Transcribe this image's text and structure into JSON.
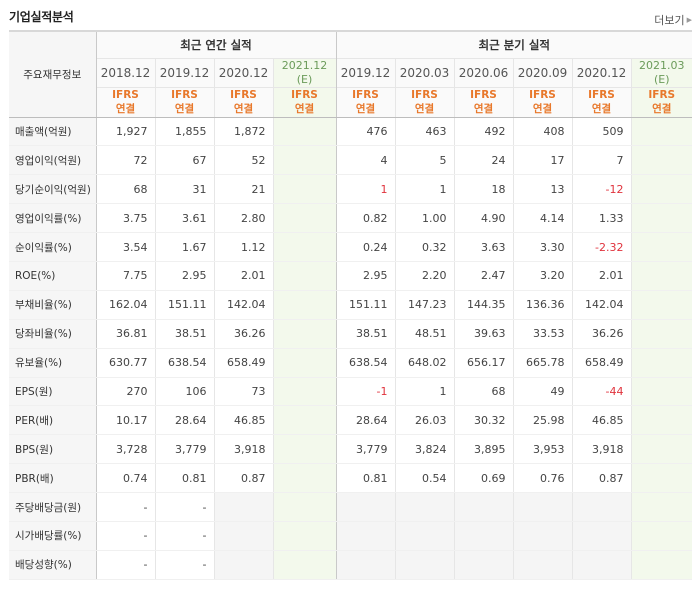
{
  "header": {
    "title": "기업실적분석",
    "more_label": "더보기"
  },
  "table": {
    "row_header_label": "주요재무정보",
    "annual_group_label": "최근 연간 실적",
    "quarter_group_label": "최근 분기 실적",
    "annual_periods": [
      "2018.12",
      "2019.12",
      "2020.12"
    ],
    "annual_estimate_period": "2021.12",
    "quarter_periods": [
      "2019.12",
      "2020.03",
      "2020.06",
      "2020.09",
      "2020.12"
    ],
    "quarter_estimate_period": "2021.03",
    "estimate_mark": "(E)",
    "ifrs_label": "IFRS",
    "consolidated_label": "연결",
    "rows": [
      {
        "label": "매출액(억원)",
        "annual": [
          "1,927",
          "1,855",
          "1,872"
        ],
        "quarter": [
          "476",
          "463",
          "492",
          "408",
          "509"
        ],
        "neg_q": [
          false,
          false,
          false,
          false,
          false
        ],
        "neg_a": [
          false,
          false,
          false
        ]
      },
      {
        "label": "영업이익(억원)",
        "annual": [
          "72",
          "67",
          "52"
        ],
        "quarter": [
          "4",
          "5",
          "24",
          "17",
          "7"
        ],
        "neg_q": [
          false,
          false,
          false,
          false,
          false
        ],
        "neg_a": [
          false,
          false,
          false
        ]
      },
      {
        "label": "당기순이익(억원)",
        "annual": [
          "68",
          "31",
          "21"
        ],
        "quarter": [
          "1",
          "1",
          "18",
          "13",
          "-12"
        ],
        "neg_q": [
          true,
          false,
          false,
          false,
          true
        ],
        "neg_a": [
          false,
          false,
          false
        ]
      },
      {
        "label": "영업이익률(%)",
        "annual": [
          "3.75",
          "3.61",
          "2.80"
        ],
        "quarter": [
          "0.82",
          "1.00",
          "4.90",
          "4.14",
          "1.33"
        ],
        "neg_q": [
          false,
          false,
          false,
          false,
          false
        ],
        "neg_a": [
          false,
          false,
          false
        ]
      },
      {
        "label": "순이익률(%)",
        "annual": [
          "3.54",
          "1.67",
          "1.12"
        ],
        "quarter": [
          "0.24",
          "0.32",
          "3.63",
          "3.30",
          "-2.32"
        ],
        "neg_q": [
          false,
          false,
          false,
          false,
          true
        ],
        "neg_a": [
          false,
          false,
          false
        ]
      },
      {
        "label": "ROE(%)",
        "annual": [
          "7.75",
          "2.95",
          "2.01"
        ],
        "quarter": [
          "2.95",
          "2.20",
          "2.47",
          "3.20",
          "2.01"
        ],
        "neg_q": [
          false,
          false,
          false,
          false,
          false
        ],
        "neg_a": [
          false,
          false,
          false
        ]
      },
      {
        "label": "부채비율(%)",
        "annual": [
          "162.04",
          "151.11",
          "142.04"
        ],
        "quarter": [
          "151.11",
          "147.23",
          "144.35",
          "136.36",
          "142.04"
        ],
        "neg_q": [
          false,
          false,
          false,
          false,
          false
        ],
        "neg_a": [
          false,
          false,
          false
        ]
      },
      {
        "label": "당좌비율(%)",
        "annual": [
          "36.81",
          "38.51",
          "36.26"
        ],
        "quarter": [
          "38.51",
          "48.51",
          "39.63",
          "33.53",
          "36.26"
        ],
        "neg_q": [
          false,
          false,
          false,
          false,
          false
        ],
        "neg_a": [
          false,
          false,
          false
        ]
      },
      {
        "label": "유보율(%)",
        "annual": [
          "630.77",
          "638.54",
          "658.49"
        ],
        "quarter": [
          "638.54",
          "648.02",
          "656.17",
          "665.78",
          "658.49"
        ],
        "neg_q": [
          false,
          false,
          false,
          false,
          false
        ],
        "neg_a": [
          false,
          false,
          false
        ]
      },
      {
        "label": "EPS(원)",
        "annual": [
          "270",
          "106",
          "73"
        ],
        "quarter": [
          "-1",
          "1",
          "68",
          "49",
          "-44"
        ],
        "neg_q": [
          true,
          false,
          false,
          false,
          true
        ],
        "neg_a": [
          false,
          false,
          false
        ]
      },
      {
        "label": "PER(배)",
        "annual": [
          "10.17",
          "28.64",
          "46.85"
        ],
        "quarter": [
          "28.64",
          "26.03",
          "30.32",
          "25.98",
          "46.85"
        ],
        "neg_q": [
          false,
          false,
          false,
          false,
          false
        ],
        "neg_a": [
          false,
          false,
          false
        ]
      },
      {
        "label": "BPS(원)",
        "annual": [
          "3,728",
          "3,779",
          "3,918"
        ],
        "quarter": [
          "3,779",
          "3,824",
          "3,895",
          "3,953",
          "3,918"
        ],
        "neg_q": [
          false,
          false,
          false,
          false,
          false
        ],
        "neg_a": [
          false,
          false,
          false
        ]
      },
      {
        "label": "PBR(배)",
        "annual": [
          "0.74",
          "0.81",
          "0.87"
        ],
        "quarter": [
          "0.81",
          "0.54",
          "0.69",
          "0.76",
          "0.87"
        ],
        "neg_q": [
          false,
          false,
          false,
          false,
          false
        ],
        "neg_a": [
          false,
          false,
          false
        ]
      },
      {
        "label": "주당배당금(원)",
        "annual": [
          "-",
          "-",
          ""
        ],
        "quarter": [
          "",
          "",
          "",
          "",
          ""
        ],
        "neg_q": [
          false,
          false,
          false,
          false,
          false
        ],
        "neg_a": [
          false,
          false,
          false
        ]
      },
      {
        "label": "시가배당률(%)",
        "annual": [
          "-",
          "-",
          ""
        ],
        "quarter": [
          "",
          "",
          "",
          "",
          ""
        ],
        "neg_q": [
          false,
          false,
          false,
          false,
          false
        ],
        "neg_a": [
          false,
          false,
          false
        ]
      },
      {
        "label": "배당성향(%)",
        "annual": [
          "-",
          "-",
          ""
        ],
        "quarter": [
          "",
          "",
          "",
          "",
          ""
        ],
        "neg_q": [
          false,
          false,
          false,
          false,
          false
        ],
        "neg_a": [
          false,
          false,
          false
        ]
      }
    ]
  },
  "colors": {
    "ifrs": "#e8782b",
    "negative": "#e0323c",
    "estimate_bg": "#f3f9ec",
    "estimate_text": "#6b9b5a"
  }
}
